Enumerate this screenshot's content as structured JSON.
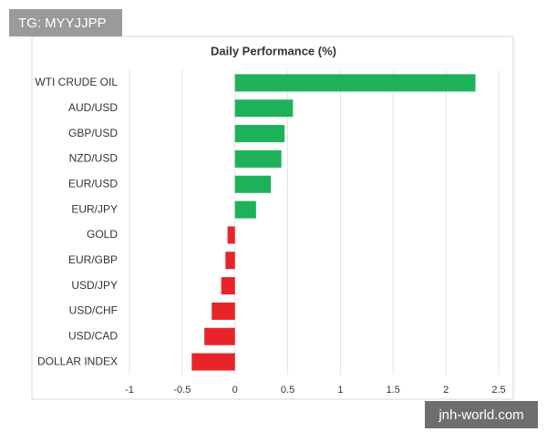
{
  "chart_data": {
    "type": "hbar",
    "title": "Daily Performance (%)",
    "categories": [
      "WTI CRUDE OIL",
      "AUD/USD",
      "GBP/USD",
      "NZD/USD",
      "EUR/USD",
      "EUR/JPY",
      "GOLD",
      "EUR/GBP",
      "USD/JPY",
      "USD/CHF",
      "USD/CAD",
      "DOLLAR INDEX"
    ],
    "values": [
      2.28,
      0.55,
      0.47,
      0.44,
      0.34,
      0.2,
      -0.07,
      -0.09,
      -0.13,
      -0.22,
      -0.29,
      -0.41
    ],
    "positive_color": "#1db25a",
    "negative_color": "#e8232a",
    "xlim": [
      -1,
      2.5
    ],
    "xticks": [
      -1,
      -0.5,
      0,
      0.5,
      1,
      1.5,
      2,
      2.5
    ],
    "grid": true
  },
  "watermarks": {
    "top_left": "TG: MYYJJPP",
    "bottom_right": "jnh-world.com"
  }
}
